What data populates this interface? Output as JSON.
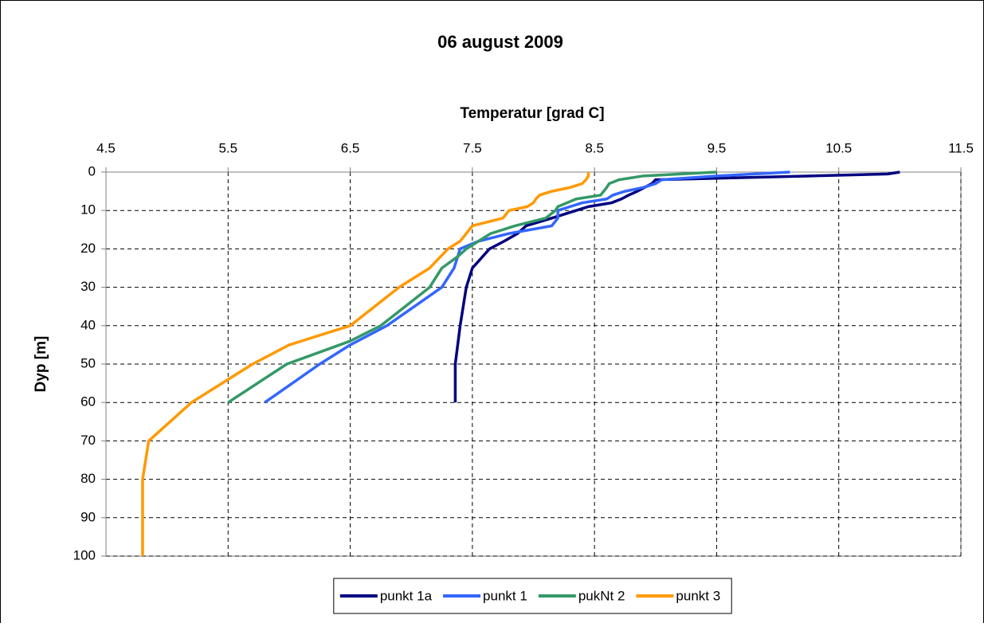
{
  "chart_data": {
    "type": "line",
    "title": "06 august 2009",
    "x_label": "Temperatur [grad C]",
    "y_label": "Dyp [m]",
    "xlim": [
      4.5,
      11.5
    ],
    "xticks": [
      4.5,
      5.5,
      6.5,
      7.5,
      8.5,
      9.5,
      10.5,
      11.5
    ],
    "ylim": [
      0,
      100
    ],
    "yticks": [
      0,
      10,
      20,
      30,
      40,
      50,
      60,
      70,
      80,
      90,
      100
    ],
    "y_inverted": true,
    "x_axis_position": "top",
    "grid": true,
    "legend": "bottom",
    "series": [
      {
        "name": "punkt 1a",
        "color": "#000080",
        "y": [
          0,
          0.5,
          2,
          3,
          5,
          6,
          7,
          8,
          9,
          10,
          12,
          14,
          16,
          18,
          20,
          25,
          30,
          40,
          50,
          60
        ],
        "x": [
          11.0,
          10.9,
          9.0,
          8.97,
          8.85,
          8.78,
          8.72,
          8.64,
          8.45,
          8.35,
          8.15,
          7.94,
          7.87,
          7.76,
          7.64,
          7.5,
          7.45,
          7.4,
          7.36,
          7.36
        ]
      },
      {
        "name": "punkt 1",
        "color": "#3366ff",
        "y": [
          0,
          1,
          2,
          3,
          4,
          5,
          6,
          7,
          8,
          9,
          10,
          12,
          14,
          16,
          18,
          20,
          25,
          30,
          40,
          45,
          50,
          60
        ],
        "x": [
          10.1,
          9.5,
          9.05,
          9.0,
          8.9,
          8.75,
          8.65,
          8.6,
          8.4,
          8.3,
          8.2,
          8.2,
          8.15,
          7.8,
          7.55,
          7.4,
          7.35,
          7.25,
          6.8,
          6.5,
          6.25,
          5.8
        ]
      },
      {
        "name": "pukNt 2",
        "color": "#339966",
        "y": [
          0,
          1,
          2,
          3,
          4,
          6,
          7,
          9,
          10,
          12,
          14,
          16,
          18,
          20,
          22,
          25,
          30,
          40,
          44,
          50,
          60
        ],
        "x": [
          9.5,
          8.9,
          8.7,
          8.62,
          8.6,
          8.55,
          8.35,
          8.2,
          8.18,
          8.1,
          7.85,
          7.65,
          7.55,
          7.45,
          7.38,
          7.25,
          7.15,
          6.75,
          6.5,
          5.98,
          5.5
        ]
      },
      {
        "name": "punkt 3",
        "color": "#ff9900",
        "y": [
          0,
          1,
          2,
          3,
          4,
          5,
          6,
          7,
          8,
          9,
          10,
          12,
          14,
          16,
          18,
          20,
          25,
          30,
          40,
          45,
          50,
          60,
          70,
          80,
          90,
          100
        ],
        "x": [
          8.45,
          8.45,
          8.43,
          8.4,
          8.3,
          8.15,
          8.05,
          8.02,
          8.0,
          7.95,
          7.8,
          7.75,
          7.5,
          7.45,
          7.4,
          7.3,
          7.15,
          6.9,
          6.5,
          6.0,
          5.7,
          5.2,
          4.85,
          4.8,
          4.8,
          4.8
        ]
      }
    ]
  }
}
